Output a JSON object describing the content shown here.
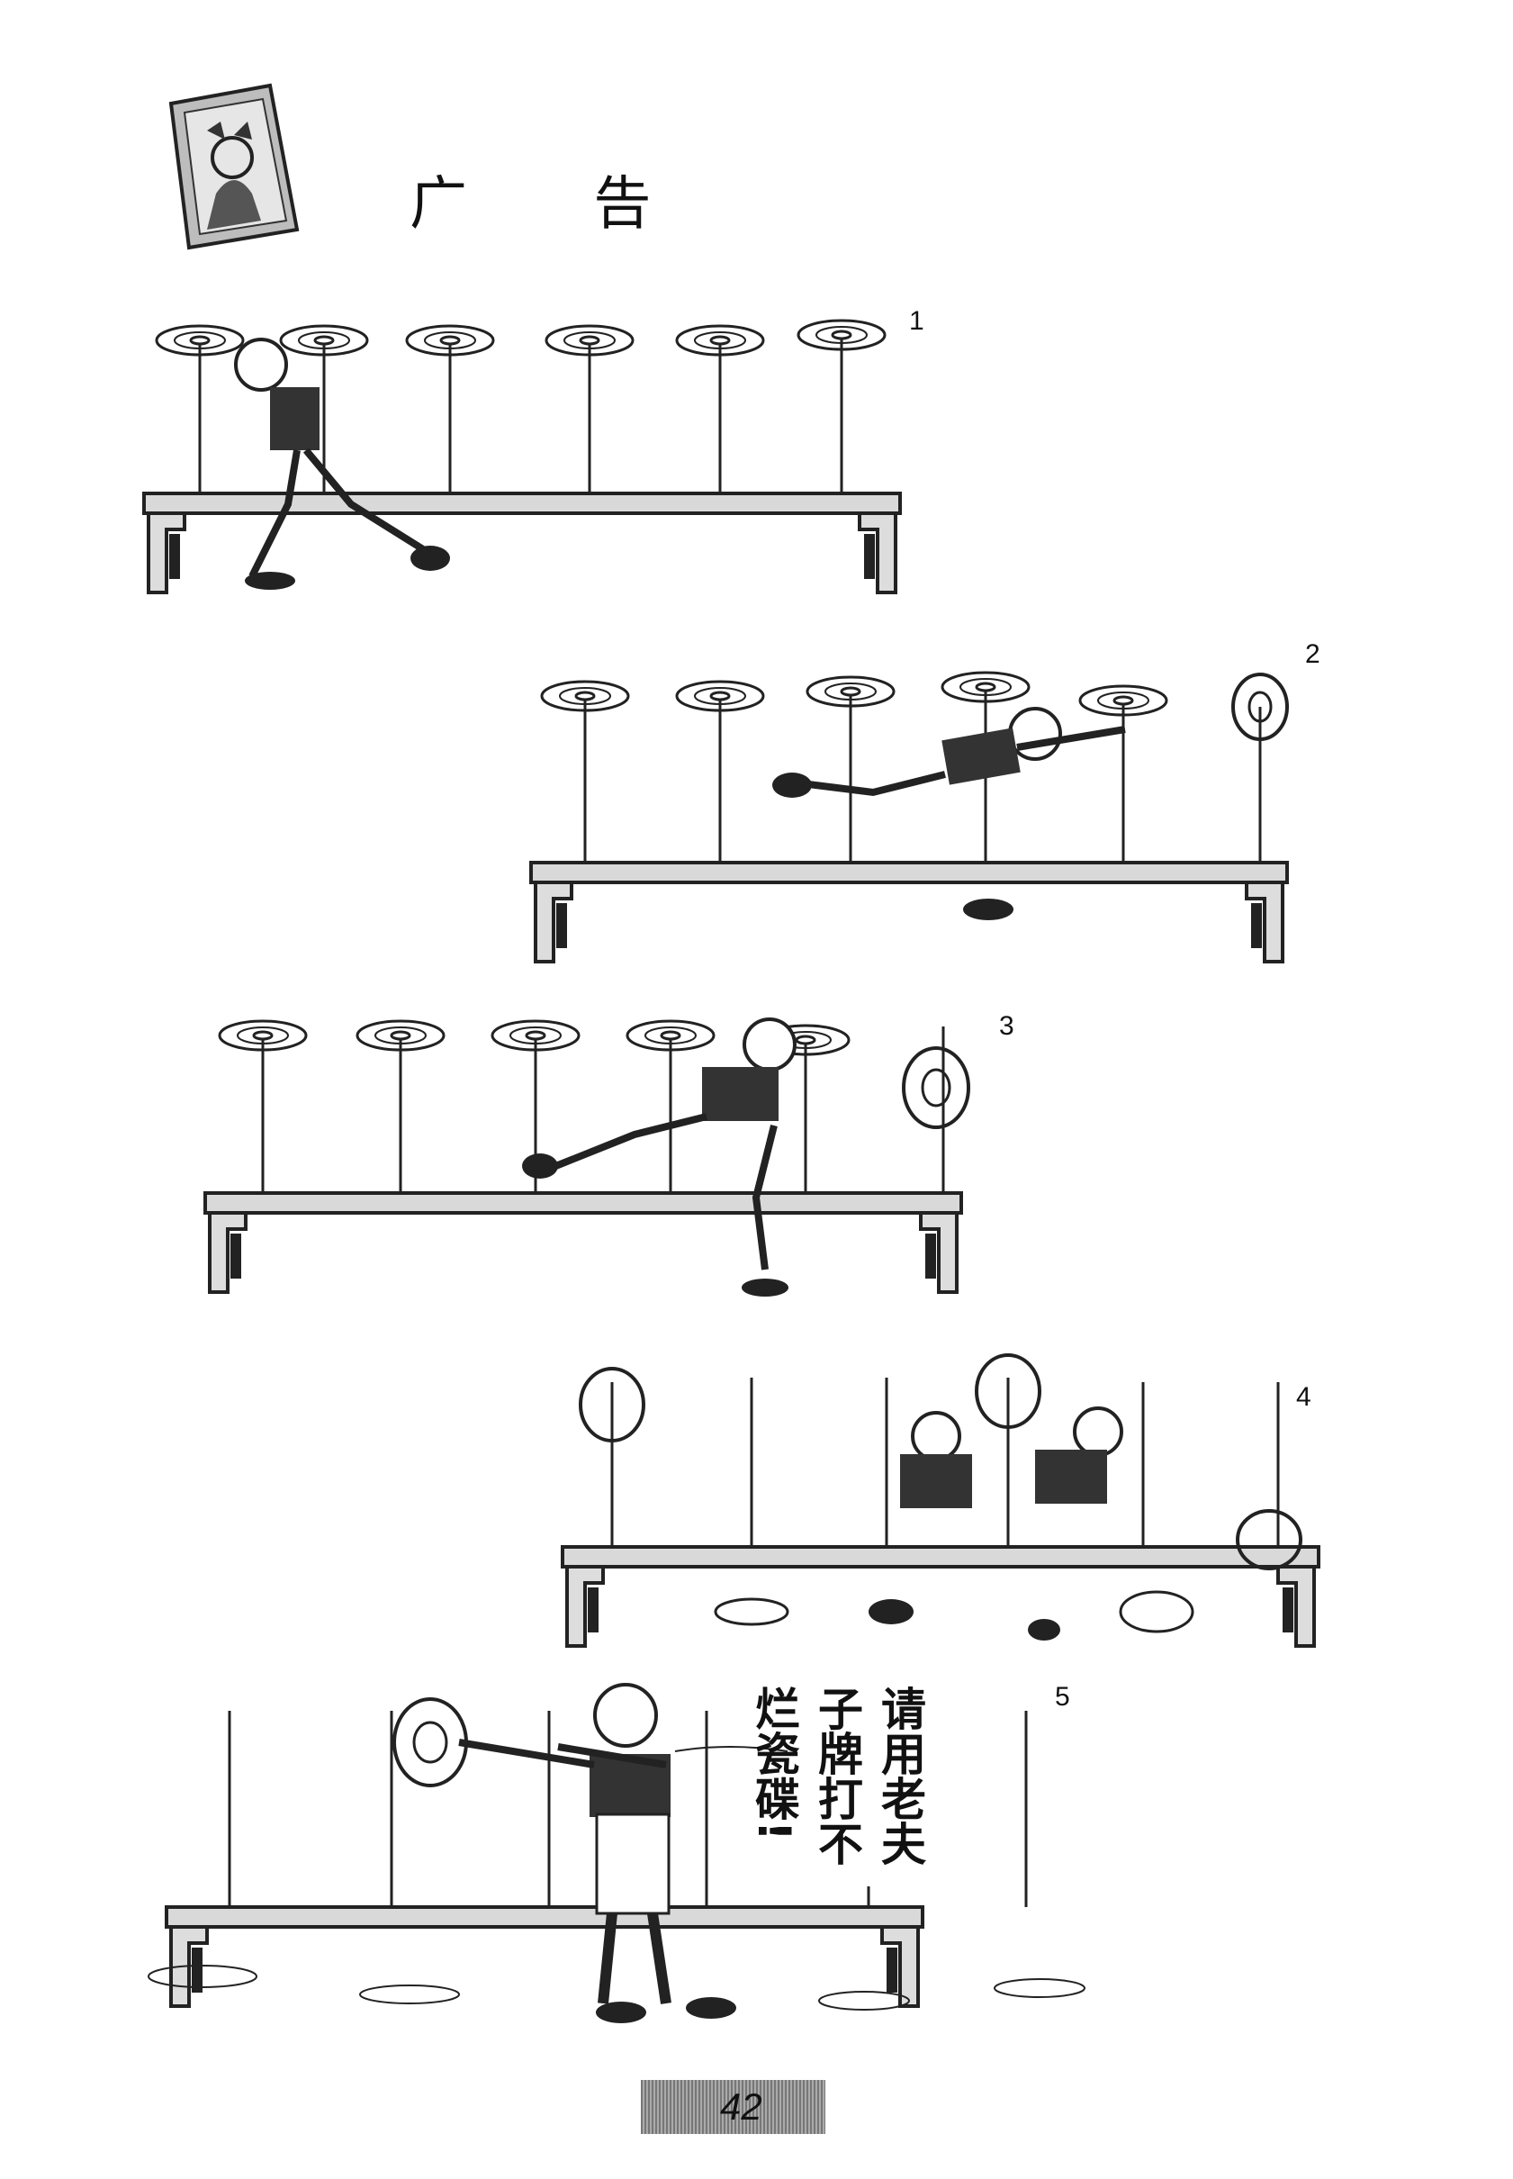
{
  "page": {
    "title": "广 告",
    "page_number": "42"
  },
  "panels": [
    {
      "label": "1"
    },
    {
      "label": "2"
    },
    {
      "label": "3"
    },
    {
      "label": "4"
    },
    {
      "label": "5",
      "speech": "请用老夫子牌打不烂瓷碟!"
    }
  ]
}
